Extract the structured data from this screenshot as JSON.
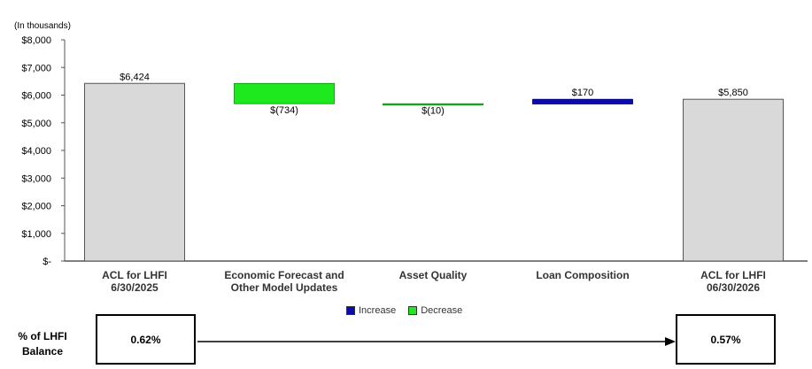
{
  "chart_data": {
    "type": "waterfall",
    "unit_note": "(In thousands)",
    "y_ticks": [
      "$8,000",
      "$7,000",
      "$6,000",
      "$5,000",
      "$4,000",
      "$3,000",
      "$2,000",
      "$1,000",
      "$-"
    ],
    "ylim": [
      0,
      8000
    ],
    "steps": [
      {
        "label": "ACL  for LHFI\n6/30/2025",
        "kind": "total",
        "value": 6424,
        "display": "$6,424"
      },
      {
        "label": "Economic Forecast and\nOther Model Updates",
        "kind": "decrease",
        "value": -734,
        "display": "$(734)"
      },
      {
        "label": "Asset Quality",
        "kind": "decrease",
        "value": -10,
        "display": "$(10)"
      },
      {
        "label": "Loan Composition",
        "kind": "increase",
        "value": 170,
        "display": "$170"
      },
      {
        "label": "ACL  for LHFI\n06/30/2026",
        "kind": "total",
        "value": 5850,
        "display": "$5,850"
      }
    ],
    "legend": [
      {
        "name": "Increase",
        "color": "#0a0aad"
      },
      {
        "name": "Decrease",
        "color": "#1ee81e"
      }
    ],
    "colors": {
      "total": "#d9d9d9",
      "increase": "#0a0aad",
      "decrease": "#1ee81e"
    }
  },
  "pct_row": {
    "title": "% of LHFI\nBalance",
    "start": "0.62%",
    "end": "0.57%"
  }
}
